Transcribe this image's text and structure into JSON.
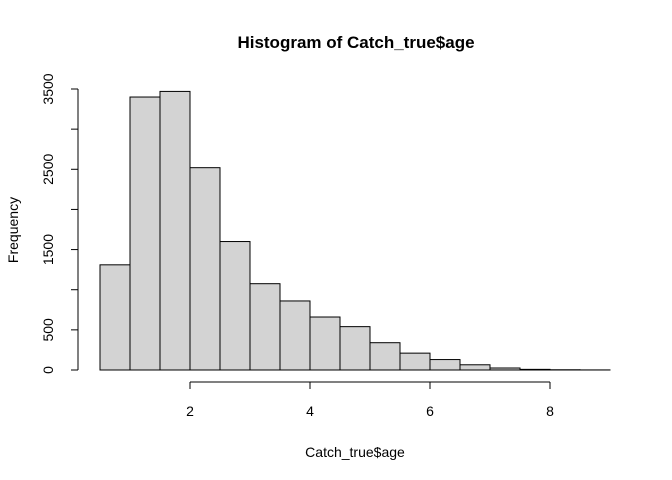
{
  "chart_data": {
    "type": "bar",
    "title": "Histogram of Catch_true$age",
    "xlabel": "Catch_true$age",
    "ylabel": "Frequency",
    "bins": [
      {
        "x0": 0.5,
        "x1": 1.0,
        "count": 1310
      },
      {
        "x0": 1.0,
        "x1": 1.5,
        "count": 3400
      },
      {
        "x0": 1.5,
        "x1": 2.0,
        "count": 3470
      },
      {
        "x0": 2.0,
        "x1": 2.5,
        "count": 2520
      },
      {
        "x0": 2.5,
        "x1": 3.0,
        "count": 1600
      },
      {
        "x0": 3.0,
        "x1": 3.5,
        "count": 1075
      },
      {
        "x0": 3.5,
        "x1": 4.0,
        "count": 860
      },
      {
        "x0": 4.0,
        "x1": 4.5,
        "count": 660
      },
      {
        "x0": 4.5,
        "x1": 5.0,
        "count": 540
      },
      {
        "x0": 5.0,
        "x1": 5.5,
        "count": 340
      },
      {
        "x0": 5.5,
        "x1": 6.0,
        "count": 210
      },
      {
        "x0": 6.0,
        "x1": 6.5,
        "count": 130
      },
      {
        "x0": 6.5,
        "x1": 7.0,
        "count": 65
      },
      {
        "x0": 7.0,
        "x1": 7.5,
        "count": 25
      },
      {
        "x0": 7.5,
        "x1": 8.0,
        "count": 8
      },
      {
        "x0": 8.0,
        "x1": 8.5,
        "count": 3
      },
      {
        "x0": 8.5,
        "x1": 9.0,
        "count": 1
      }
    ],
    "xticks": [
      2,
      4,
      6,
      8
    ],
    "yticks": [
      0,
      500,
      1500,
      2500,
      3500
    ],
    "xlim": [
      0.5,
      9.0
    ],
    "ylim": [
      0,
      3500
    ],
    "grid": false,
    "colors": {
      "bar_fill": "#d3d3d3",
      "bar_edge": "#000000"
    }
  }
}
